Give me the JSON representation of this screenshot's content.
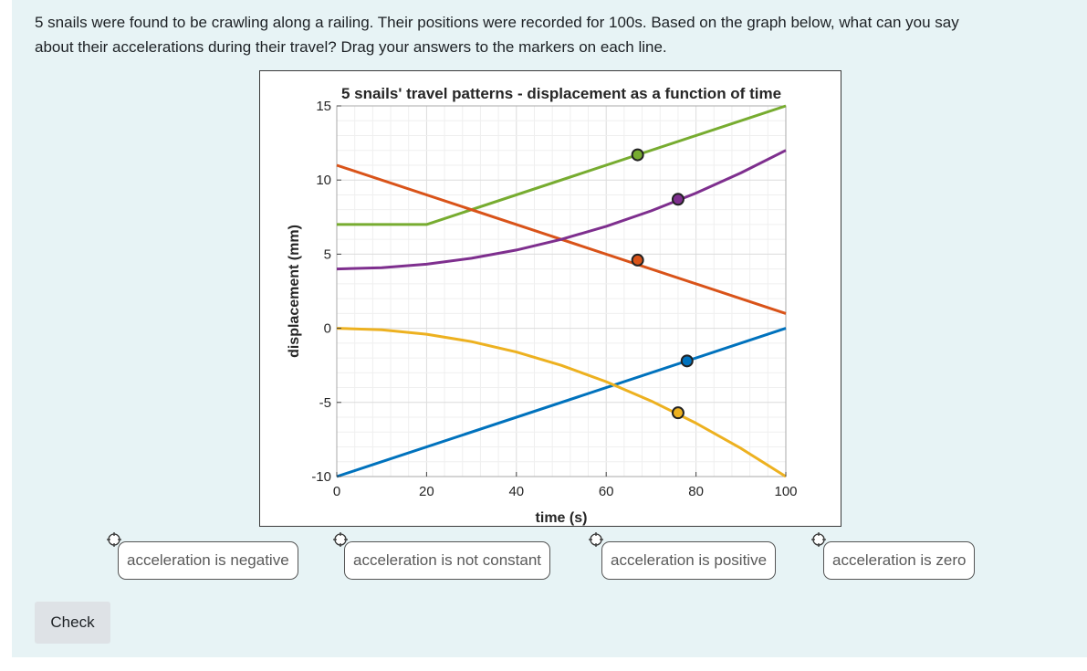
{
  "question": {
    "line1": "5 snails were found to be crawling along a railing. Their positions were recorded for 100s. Based on the graph below, what can you say",
    "line2": "about their accelerations during their travel? Drag your answers to the markers on each line."
  },
  "chart_data": {
    "type": "line",
    "title": "5 snails' travel patterns - displacement as a function of time",
    "xlabel": "time (s)",
    "ylabel": "displacement (mm)",
    "xlim": [
      0,
      100
    ],
    "ylim": [
      -10,
      15
    ],
    "xticks": [
      "0",
      "20",
      "40",
      "60",
      "80",
      "100"
    ],
    "yticks": [
      "-10",
      "-5",
      "0",
      "5",
      "10",
      "15"
    ],
    "grid": true,
    "series": [
      {
        "name": "green",
        "color": "#77ac30",
        "x": [
          0,
          20,
          100
        ],
        "y": [
          7,
          7,
          15
        ],
        "marker": {
          "x": 67,
          "y": 11.7,
          "color": "#77ac30"
        }
      },
      {
        "name": "orange",
        "color": "#d95319",
        "x": [
          0,
          100
        ],
        "y": [
          11,
          1
        ],
        "marker": {
          "x": 67,
          "y": 4.6,
          "color": "#d95319"
        }
      },
      {
        "name": "purple",
        "color": "#7e2f8e",
        "x": [
          0,
          10,
          20,
          30,
          40,
          50,
          60,
          70,
          80,
          90,
          100
        ],
        "y": [
          4,
          4.08,
          4.32,
          4.72,
          5.28,
          6,
          6.88,
          7.92,
          9.12,
          10.48,
          12
        ],
        "marker": {
          "x": 76,
          "y": 8.7,
          "color": "#7e2f8e"
        }
      },
      {
        "name": "blue",
        "color": "#0072bd",
        "x": [
          0,
          100
        ],
        "y": [
          -10,
          0
        ],
        "marker": {
          "x": 78,
          "y": -2.2,
          "color": "#0072bd"
        }
      },
      {
        "name": "yellow",
        "color": "#edb120",
        "x": [
          0,
          10,
          20,
          30,
          40,
          50,
          60,
          70,
          80,
          90,
          100
        ],
        "y": [
          0,
          -0.1,
          -0.4,
          -0.9,
          -1.6,
          -2.5,
          -3.6,
          -4.9,
          -6.4,
          -8.1,
          -10
        ],
        "marker": {
          "x": 76,
          "y": -5.7,
          "color": "#edb120"
        }
      }
    ]
  },
  "answers": [
    {
      "label": "acceleration is negative"
    },
    {
      "label": "acceleration is not constant"
    },
    {
      "label": "acceleration is positive"
    },
    {
      "label": "acceleration is zero"
    }
  ],
  "check_label": "Check"
}
